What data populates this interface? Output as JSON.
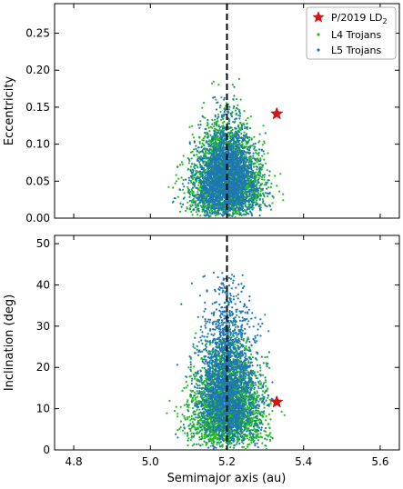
{
  "chart_data": [
    {
      "type": "scatter",
      "xlabel": "",
      "ylabel": "Eccentricity",
      "xlim": [
        4.75,
        5.65
      ],
      "ylim": [
        0.0,
        0.29
      ],
      "xticks": [
        4.8,
        5.0,
        5.2,
        5.4,
        5.6
      ],
      "yticks": [
        "0.00",
        "0.05",
        "0.10",
        "0.15",
        "0.20",
        "0.25"
      ],
      "show_xtick_labels": false,
      "vertical_reference_line": 5.2,
      "series": [
        {
          "name": "L4 Trojans",
          "color": "#22bb22",
          "marker": "dot",
          "count": 2600,
          "distribution": {
            "x_center": 5.2,
            "x_sigma": 0.045,
            "x_min": 5.04,
            "x_max": 5.37,
            "y_min": 0.0,
            "y_peak": 0.05,
            "y_max": 0.21
          }
        },
        {
          "name": "L5 Trojans",
          "color": "#1f77b4",
          "marker": "dot",
          "count": 2200,
          "distribution": {
            "x_center": 5.2,
            "x_sigma": 0.04,
            "x_min": 5.05,
            "x_max": 5.33,
            "y_min": 0.0,
            "y_peak": 0.05,
            "y_max": 0.28
          }
        }
      ],
      "highlight": {
        "name": "P/2019 LD",
        "name_subscript": "2",
        "marker": "star",
        "color": "#dd1111",
        "x": 5.33,
        "y": 0.141
      },
      "legend": {
        "position": "top-right"
      }
    },
    {
      "type": "scatter",
      "xlabel": "Semimajor axis (au)",
      "ylabel": "Inclination (deg)",
      "xlim": [
        4.75,
        5.65
      ],
      "ylim": [
        0,
        52
      ],
      "xticks": [
        "4.8",
        "5.0",
        "5.2",
        "5.4",
        "5.6"
      ],
      "yticks": [
        "0",
        "10",
        "20",
        "30",
        "40",
        "50"
      ],
      "show_xtick_labels": true,
      "vertical_reference_line": 5.2,
      "series": [
        {
          "name": "L4 Trojans",
          "color": "#22bb22",
          "marker": "dot",
          "count": 2600,
          "distribution": {
            "x_center": 5.2,
            "x_sigma": 0.045,
            "x_min": 5.04,
            "x_max": 5.37,
            "y_min": 0,
            "y_peak": 10,
            "y_max": 40
          }
        },
        {
          "name": "L5 Trojans",
          "color": "#1f77b4",
          "marker": "dot",
          "count": 2200,
          "distribution": {
            "x_center": 5.2,
            "x_sigma": 0.04,
            "x_min": 5.05,
            "x_max": 5.33,
            "y_min": 0,
            "y_peak": 15,
            "y_max": 43
          }
        }
      ],
      "highlight": {
        "name": "P/2019 LD",
        "name_subscript": "2",
        "marker": "star",
        "color": "#dd1111",
        "x": 5.33,
        "y": 11.6
      }
    }
  ]
}
